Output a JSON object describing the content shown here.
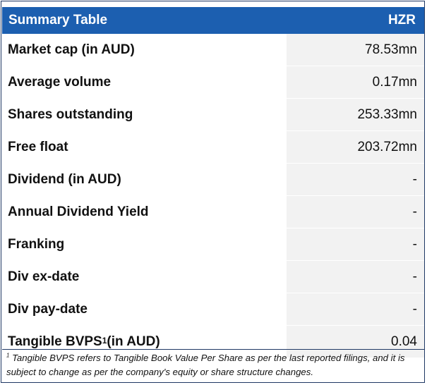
{
  "table": {
    "title": "Summary Table",
    "ticker": "HZR",
    "rows": [
      {
        "label": "Market cap (in AUD)",
        "value": "78.53mn"
      },
      {
        "label": "Average volume",
        "value": "0.17mn"
      },
      {
        "label": "Shares outstanding",
        "value": "253.33mn"
      },
      {
        "label": "Free float",
        "value": "203.72mn"
      },
      {
        "label": "Dividend (in AUD)",
        "value": "-"
      },
      {
        "label": "Annual Dividend Yield",
        "value": "-"
      },
      {
        "label": "Franking",
        "value": "-"
      },
      {
        "label": "Div ex-date",
        "value": "-"
      },
      {
        "label": "Div pay-date",
        "value": "-"
      },
      {
        "label_main": "Tangible BVPS",
        "label_sup": "1",
        "label_tail": " (in AUD)",
        "value": "0.04"
      }
    ]
  },
  "footnote": {
    "marker": "1",
    "text": " Tangible BVPS refers to Tangible Book Value Per Share as per the last reported filings, and it is subject to change as per the company's equity or share structure changes."
  },
  "colors": {
    "header_bg": "#1c5fb0",
    "value_bg": "#f2f2f2",
    "border": "#1f3864"
  }
}
